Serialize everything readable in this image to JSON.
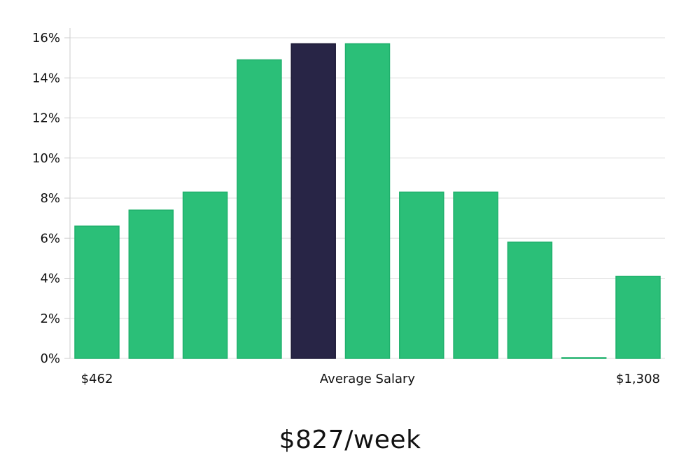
{
  "chart_data": {
    "type": "bar",
    "values": [
      6.6,
      7.4,
      8.3,
      14.9,
      15.7,
      15.7,
      8.3,
      8.3,
      5.8,
      0.0,
      4.1
    ],
    "highlight_index": 4,
    "x_labels": [
      {
        "text": "$462",
        "bar_index": 0
      },
      {
        "text": "Average Salary",
        "bar_index": 5
      },
      {
        "text": "$1,308",
        "bar_index": 10
      }
    ],
    "y_ticks": [
      "0%",
      "2%",
      "4%",
      "6%",
      "8%",
      "10%",
      "12%",
      "14%",
      "16%"
    ],
    "ylim": [
      0,
      16
    ],
    "grid": true,
    "colors": {
      "bar": "#2bbf78",
      "bar_edge": "#1fb06c",
      "highlight": "#282546",
      "grid": "#dddddd",
      "axis": "#cccccc"
    }
  },
  "summary": "$827/week"
}
